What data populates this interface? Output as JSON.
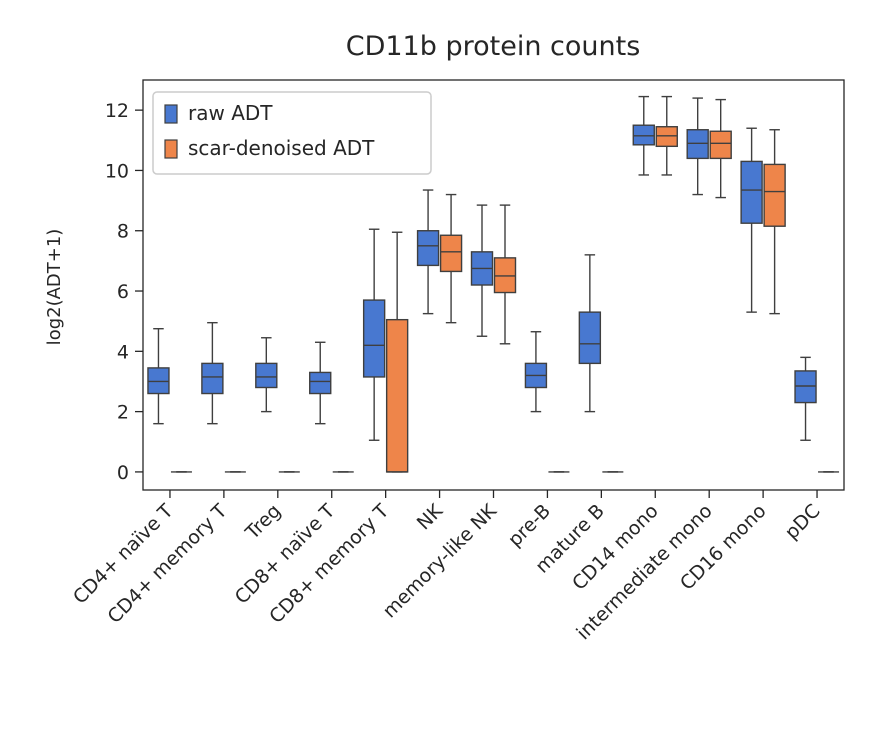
{
  "chart_data": {
    "type": "box",
    "title": "CD11b protein counts",
    "xlabel": "",
    "ylabel": "log2(ADT+1)",
    "ylim": [
      -0.6,
      13.0
    ],
    "yticks": [
      0,
      2,
      4,
      6,
      8,
      10,
      12
    ],
    "grid": false,
    "legend_position": "top-left",
    "categories": [
      "CD4+ naïve T",
      "CD4+ memory T",
      "Treg",
      "CD8+ naïve T",
      "CD8+ memory T",
      "NK",
      "memory-like NK",
      "pre-B",
      "mature B",
      "CD14 mono",
      "intermediate mono",
      "CD16 mono",
      "pDC"
    ],
    "series": [
      {
        "name": "raw ADT",
        "color": "#4878d0",
        "boxes": [
          {
            "whislo": 1.6,
            "q1": 2.6,
            "med": 3.0,
            "q3": 3.45,
            "whishi": 4.75
          },
          {
            "whislo": 1.6,
            "q1": 2.6,
            "med": 3.15,
            "q3": 3.6,
            "whishi": 4.95
          },
          {
            "whislo": 2.0,
            "q1": 2.8,
            "med": 3.15,
            "q3": 3.6,
            "whishi": 4.45
          },
          {
            "whislo": 1.6,
            "q1": 2.6,
            "med": 3.0,
            "q3": 3.3,
            "whishi": 4.3
          },
          {
            "whislo": 1.05,
            "q1": 3.15,
            "med": 4.2,
            "q3": 5.7,
            "whishi": 8.05
          },
          {
            "whislo": 5.25,
            "q1": 6.85,
            "med": 7.5,
            "q3": 8.0,
            "whishi": 9.35
          },
          {
            "whislo": 4.5,
            "q1": 6.2,
            "med": 6.75,
            "q3": 7.3,
            "whishi": 8.85
          },
          {
            "whislo": 2.0,
            "q1": 2.8,
            "med": 3.2,
            "q3": 3.6,
            "whishi": 4.65
          },
          {
            "whislo": 2.0,
            "q1": 3.6,
            "med": 4.25,
            "q3": 5.3,
            "whishi": 7.2
          },
          {
            "whislo": 9.85,
            "q1": 10.85,
            "med": 11.15,
            "q3": 11.5,
            "whishi": 12.45
          },
          {
            "whislo": 9.2,
            "q1": 10.4,
            "med": 10.9,
            "q3": 11.35,
            "whishi": 12.4
          },
          {
            "whislo": 5.3,
            "q1": 8.25,
            "med": 9.35,
            "q3": 10.3,
            "whishi": 11.4
          },
          {
            "whislo": 1.05,
            "q1": 2.3,
            "med": 2.85,
            "q3": 3.35,
            "whishi": 3.8
          }
        ]
      },
      {
        "name": "scar-denoised ADT",
        "color": "#ee854a",
        "boxes": [
          {
            "whislo": 0,
            "q1": 0,
            "med": 0,
            "q3": 0,
            "whishi": 0
          },
          {
            "whislo": 0,
            "q1": 0,
            "med": 0,
            "q3": 0,
            "whishi": 0
          },
          {
            "whislo": 0,
            "q1": 0,
            "med": 0,
            "q3": 0,
            "whishi": 0
          },
          {
            "whislo": 0,
            "q1": 0,
            "med": 0,
            "q3": 0,
            "whishi": 0
          },
          {
            "whislo": 0,
            "q1": 0,
            "med": 0,
            "q3": 5.05,
            "whishi": 7.95
          },
          {
            "whislo": 4.95,
            "q1": 6.65,
            "med": 7.3,
            "q3": 7.85,
            "whishi": 9.2
          },
          {
            "whislo": 4.25,
            "q1": 5.95,
            "med": 6.5,
            "q3": 7.1,
            "whishi": 8.85
          },
          {
            "whislo": 0,
            "q1": 0,
            "med": 0,
            "q3": 0,
            "whishi": 0
          },
          {
            "whislo": 0,
            "q1": 0,
            "med": 0,
            "q3": 0,
            "whishi": 0
          },
          {
            "whislo": 9.85,
            "q1": 10.8,
            "med": 11.15,
            "q3": 11.45,
            "whishi": 12.45
          },
          {
            "whislo": 9.1,
            "q1": 10.4,
            "med": 10.9,
            "q3": 11.3,
            "whishi": 12.35
          },
          {
            "whislo": 5.25,
            "q1": 8.15,
            "med": 9.3,
            "q3": 10.2,
            "whishi": 11.35
          },
          {
            "whislo": 0,
            "q1": 0,
            "med": 0,
            "q3": 0,
            "whishi": 0
          }
        ]
      }
    ]
  }
}
